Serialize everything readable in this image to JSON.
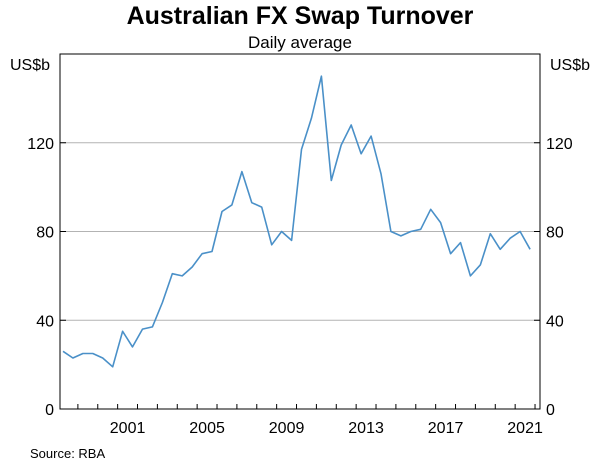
{
  "chart_data": {
    "type": "line",
    "title": "Australian FX Swap Turnover",
    "subtitle": "Daily average",
    "ylabel_left": "US$b",
    "ylabel_right": "US$b",
    "source": "Source:   RBA",
    "ylim": [
      0,
      160
    ],
    "yticks": [
      0,
      40,
      80,
      120
    ],
    "ytick_labels": [
      "0",
      "40",
      "80",
      "120"
    ],
    "xlim": [
      1998.1,
      2022.25
    ],
    "xticks": [
      2001,
      2005,
      2009,
      2013,
      2017,
      2021
    ],
    "xtick_labels": [
      "2001",
      "2005",
      "2009",
      "2013",
      "2017",
      "2021"
    ],
    "grid": true,
    "line_color": "#4a90c8",
    "series": [
      {
        "x": [
          1998.25,
          1998.75,
          1999.25,
          1999.75,
          2000.25,
          2000.75,
          2001.25,
          2001.75,
          2002.25,
          2002.75,
          2003.25,
          2003.75,
          2004.25,
          2004.75,
          2005.25,
          2005.75,
          2006.25,
          2006.75,
          2007.25,
          2007.75,
          2008.25,
          2008.75,
          2009.25,
          2009.75,
          2010.25,
          2010.75,
          2011.25,
          2011.75,
          2012.25,
          2012.75,
          2013.25,
          2013.75,
          2014.25,
          2014.75,
          2015.25,
          2015.75,
          2016.25,
          2016.75,
          2017.25,
          2017.75,
          2018.25,
          2018.75,
          2019.25,
          2019.75,
          2020.25,
          2020.75,
          2021.25,
          2021.75
        ],
        "values": [
          26,
          23,
          25,
          25,
          23,
          19,
          35,
          28,
          36,
          37,
          48,
          61,
          60,
          64,
          70,
          71,
          89,
          92,
          107,
          93,
          91,
          74,
          80,
          76,
          117,
          131,
          150,
          103,
          119,
          128,
          115,
          123,
          106,
          80,
          78,
          80,
          81,
          90,
          84,
          70,
          75,
          60,
          65,
          79,
          72,
          77,
          80,
          72
        ]
      }
    ]
  }
}
